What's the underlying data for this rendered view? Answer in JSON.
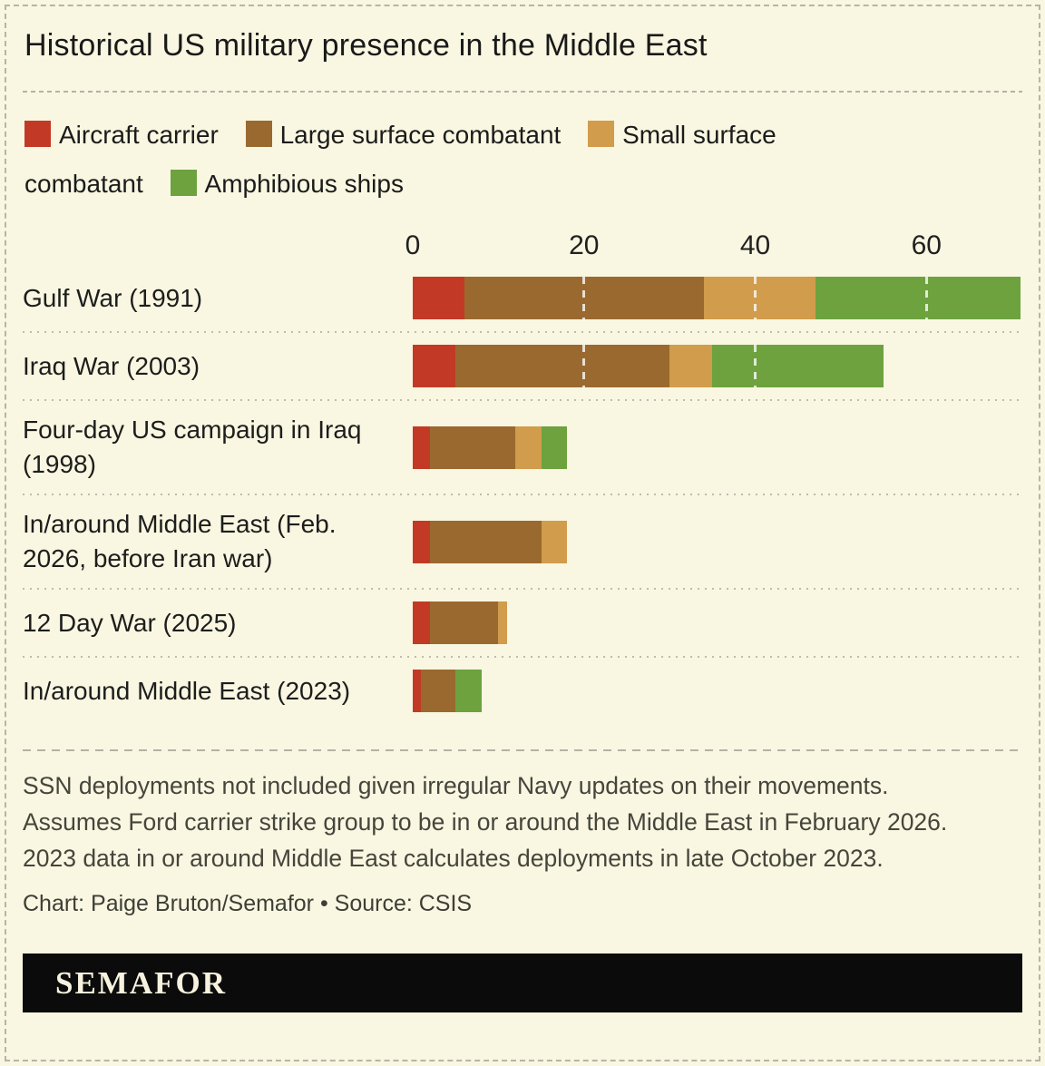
{
  "title": "Historical US military presence in the Middle East",
  "legend": {
    "items": [
      {
        "label": "Aircraft carrier",
        "color": "#c23a26"
      },
      {
        "label": "Large surface combatant",
        "color": "#9a692f"
      },
      {
        "label": "Small surface combatant",
        "color": "#d19c4b"
      },
      {
        "label": "Amphibious ships",
        "color": "#6da23f"
      }
    ]
  },
  "chart_data": {
    "type": "bar",
    "orientation": "horizontal",
    "stacked": true,
    "title": "Historical US military presence in the Middle East",
    "categories": [
      "Gulf War (1991)",
      "Iraq War (2003)",
      "Four-day US campaign in Iraq (1998)",
      "In/around Middle East (Feb. 2026, before Iran war)",
      "12 Day War (2025)",
      "In/around Middle East (2023)"
    ],
    "series": [
      {
        "name": "Aircraft carrier",
        "color": "#c23a26",
        "values": [
          6,
          5,
          2,
          2,
          2,
          1
        ]
      },
      {
        "name": "Large surface combatant",
        "color": "#9a692f",
        "values": [
          28,
          25,
          10,
          13,
          8,
          4
        ]
      },
      {
        "name": "Small surface combatant",
        "color": "#d19c4b",
        "values": [
          13,
          5,
          3,
          3,
          1,
          0
        ]
      },
      {
        "name": "Amphibious ships",
        "color": "#6da23f",
        "values": [
          24,
          20,
          3,
          0,
          0,
          3
        ]
      }
    ],
    "totals": [
      71,
      55,
      18,
      18,
      11,
      8
    ],
    "xlabel": "",
    "ylabel": "",
    "xlim": [
      0,
      71.2
    ],
    "ticks": [
      0,
      20,
      40,
      60
    ],
    "legend_position": "top",
    "grid": "white dashed vertical lines at ticks, drawn over bars only"
  },
  "footnote": "SSN deployments not included given irregular Navy updates on their movements. Assumes Ford carrier strike group to be in or around the Middle East in February 2026. 2023 data in or around Middle East calculates deployments in late October 2023.",
  "credit": "Chart: Paige Bruton/Semafor • Source: CSIS",
  "logo": {
    "text": "SEMAFOR"
  },
  "colors": {
    "background": "#f9f7e1",
    "aircraft_carrier": "#c23a26",
    "large_surface_combatant": "#9a692f",
    "small_surface_combatant": "#d19c4b",
    "amphibious_ships": "#6da23f",
    "separator": "#b3b3a7",
    "logo_bar": "#0b0b0b",
    "logo_text": "#f6f2de"
  }
}
